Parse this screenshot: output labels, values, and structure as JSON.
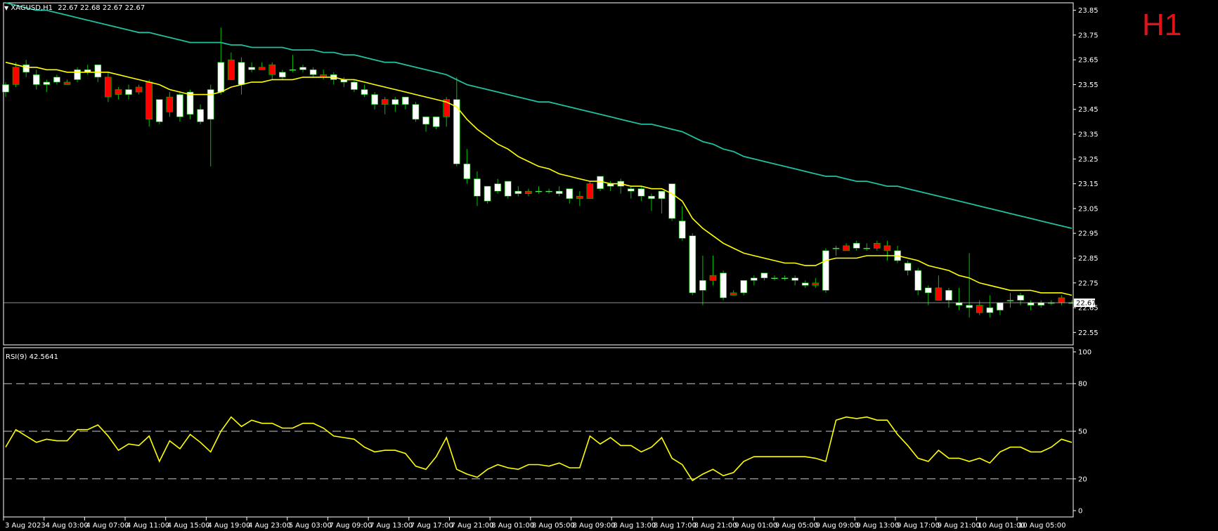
{
  "header": {
    "symbol": "XAGUSD,H1",
    "ohlc": "22.67 22.68 22.67 22.67"
  },
  "timeframe_badge": "H1",
  "indicator": {
    "label": "RSI(9) 42.5641"
  },
  "colors": {
    "background": "#000000",
    "bull_body": "#ffffff",
    "bear_body": "#ff0000",
    "wick": "#00c000",
    "ma_fast": "#ffff00",
    "ma_slow": "#20c0a0",
    "rsi": "#ffff00",
    "price_line": "#c0c0c0",
    "badge": "#e3111a"
  },
  "chart_data": [
    {
      "type": "candlestick",
      "symbol": "XAGUSD",
      "timeframe": "H1",
      "ylim": [
        22.5,
        23.88
      ],
      "yticks": [
        "23.85",
        "23.75",
        "23.65",
        "23.55",
        "23.45",
        "23.35",
        "23.25",
        "23.15",
        "23.05",
        "22.95",
        "22.85",
        "22.75",
        "22.65",
        "22.55"
      ],
      "last_price": "22.67",
      "xticks": [
        "3 Aug 2023",
        "4 Aug 03:00",
        "4 Aug 07:00",
        "4 Aug 11:00",
        "4 Aug 15:00",
        "4 Aug 19:00",
        "4 Aug 23:00",
        "5 Aug 03:00",
        "7 Aug 09:00",
        "7 Aug 13:00",
        "7 Aug 17:00",
        "7 Aug 21:00",
        "8 Aug 01:00",
        "8 Aug 05:00",
        "8 Aug 09:00",
        "8 Aug 13:00",
        "8 Aug 17:00",
        "8 Aug 21:00",
        "9 Aug 01:00",
        "9 Aug 05:00",
        "9 Aug 09:00",
        "9 Aug 13:00",
        "9 Aug 17:00",
        "9 Aug 21:00",
        "10 Aug 01:00",
        "10 Aug 05:00"
      ],
      "candles": [
        [
          23.52,
          23.56,
          23.5,
          23.55
        ],
        [
          23.62,
          23.64,
          23.54,
          23.55
        ],
        [
          23.6,
          23.65,
          23.58,
          23.63
        ],
        [
          23.55,
          23.61,
          23.53,
          23.59
        ],
        [
          23.55,
          23.57,
          23.52,
          23.56
        ],
        [
          23.56,
          23.59,
          23.55,
          23.58
        ],
        [
          23.56,
          23.57,
          23.55,
          23.55
        ],
        [
          23.57,
          23.62,
          23.56,
          23.61
        ],
        [
          23.6,
          23.63,
          23.59,
          23.61
        ],
        [
          23.58,
          23.63,
          23.56,
          23.63
        ],
        [
          23.58,
          23.6,
          23.48,
          23.5
        ],
        [
          23.53,
          23.54,
          23.49,
          23.51
        ],
        [
          23.51,
          23.55,
          23.49,
          23.53
        ],
        [
          23.54,
          23.55,
          23.51,
          23.52
        ],
        [
          23.56,
          23.57,
          23.38,
          23.41
        ],
        [
          23.4,
          23.49,
          23.39,
          23.49
        ],
        [
          23.5,
          23.52,
          23.42,
          23.44
        ],
        [
          23.42,
          23.52,
          23.4,
          23.51
        ],
        [
          23.43,
          23.53,
          23.41,
          23.52
        ],
        [
          23.4,
          23.47,
          23.39,
          23.45
        ],
        [
          23.41,
          23.55,
          23.22,
          23.53
        ],
        [
          23.52,
          23.78,
          23.51,
          23.64
        ],
        [
          23.65,
          23.68,
          23.57,
          23.57
        ],
        [
          23.55,
          23.66,
          23.51,
          23.64
        ],
        [
          23.61,
          23.64,
          23.6,
          23.62
        ],
        [
          23.62,
          23.64,
          23.61,
          23.61
        ],
        [
          23.63,
          23.64,
          23.57,
          23.59
        ],
        [
          23.58,
          23.61,
          23.57,
          23.6
        ],
        [
          23.61,
          23.67,
          23.6,
          23.61
        ],
        [
          23.61,
          23.63,
          23.6,
          23.62
        ],
        [
          23.59,
          23.62,
          23.58,
          23.61
        ],
        [
          23.59,
          23.61,
          23.57,
          23.58
        ],
        [
          23.57,
          23.6,
          23.55,
          23.59
        ],
        [
          23.56,
          23.58,
          23.54,
          23.57
        ],
        [
          23.53,
          23.57,
          23.52,
          23.56
        ],
        [
          23.51,
          23.55,
          23.5,
          23.53
        ],
        [
          23.47,
          23.52,
          23.45,
          23.51
        ],
        [
          23.49,
          23.5,
          23.43,
          23.47
        ],
        [
          23.47,
          23.5,
          23.44,
          23.49
        ],
        [
          23.47,
          23.5,
          23.45,
          23.5
        ],
        [
          23.41,
          23.48,
          23.4,
          23.47
        ],
        [
          23.39,
          23.42,
          23.36,
          23.42
        ],
        [
          23.38,
          23.42,
          23.37,
          23.42
        ],
        [
          23.49,
          23.5,
          23.38,
          23.42
        ],
        [
          23.23,
          23.58,
          23.22,
          23.49
        ],
        [
          23.17,
          23.29,
          23.15,
          23.23
        ],
        [
          23.1,
          23.2,
          23.06,
          23.17
        ],
        [
          23.08,
          23.14,
          23.07,
          23.14
        ],
        [
          23.12,
          23.17,
          23.11,
          23.15
        ],
        [
          23.1,
          23.16,
          23.09,
          23.16
        ],
        [
          23.11,
          23.14,
          23.1,
          23.12
        ],
        [
          23.12,
          23.13,
          23.1,
          23.11
        ],
        [
          23.12,
          23.14,
          23.11,
          23.12
        ],
        [
          23.12,
          23.13,
          23.11,
          23.12
        ],
        [
          23.11,
          23.14,
          23.1,
          23.12
        ],
        [
          23.09,
          23.13,
          23.07,
          23.13
        ],
        [
          23.1,
          23.12,
          23.06,
          23.09
        ],
        [
          23.15,
          23.16,
          23.09,
          23.09
        ],
        [
          23.13,
          23.18,
          23.12,
          23.18
        ],
        [
          23.14,
          23.16,
          23.12,
          23.15
        ],
        [
          23.14,
          23.17,
          23.11,
          23.16
        ],
        [
          23.12,
          23.14,
          23.09,
          23.13
        ],
        [
          23.1,
          23.14,
          23.08,
          23.13
        ],
        [
          23.09,
          23.11,
          23.04,
          23.1
        ],
        [
          23.09,
          23.11,
          23.03,
          23.12
        ],
        [
          23.01,
          23.15,
          23.0,
          23.15
        ],
        [
          22.93,
          23.06,
          22.92,
          23.0
        ],
        [
          22.71,
          22.95,
          22.7,
          22.94
        ],
        [
          22.72,
          22.86,
          22.66,
          22.76
        ],
        [
          22.78,
          22.86,
          22.74,
          22.76
        ],
        [
          22.69,
          22.8,
          22.68,
          22.79
        ],
        [
          22.71,
          22.72,
          22.7,
          22.7
        ],
        [
          22.71,
          22.76,
          22.7,
          22.76
        ],
        [
          22.76,
          22.78,
          22.74,
          22.77
        ],
        [
          22.77,
          22.79,
          22.76,
          22.79
        ],
        [
          22.77,
          22.78,
          22.76,
          22.77
        ],
        [
          22.77,
          22.78,
          22.76,
          22.77
        ],
        [
          22.76,
          22.78,
          22.74,
          22.77
        ],
        [
          22.74,
          22.76,
          22.73,
          22.75
        ],
        [
          22.75,
          22.77,
          22.73,
          22.74
        ],
        [
          22.72,
          22.89,
          22.71,
          22.88
        ],
        [
          22.89,
          22.9,
          22.86,
          22.89
        ],
        [
          22.9,
          22.91,
          22.88,
          22.88
        ],
        [
          22.89,
          22.92,
          22.88,
          22.91
        ],
        [
          22.89,
          22.91,
          22.88,
          22.89
        ],
        [
          22.91,
          22.92,
          22.88,
          22.89
        ],
        [
          22.9,
          22.92,
          22.84,
          22.88
        ],
        [
          22.84,
          22.9,
          22.83,
          22.88
        ],
        [
          22.8,
          22.84,
          22.78,
          22.83
        ],
        [
          22.72,
          22.81,
          22.7,
          22.8
        ],
        [
          22.71,
          22.74,
          22.66,
          22.73
        ],
        [
          22.73,
          22.78,
          22.68,
          22.68
        ],
        [
          22.68,
          22.73,
          22.65,
          22.72
        ],
        [
          22.66,
          22.73,
          22.64,
          22.67
        ],
        [
          22.65,
          22.87,
          22.61,
          22.66
        ],
        [
          22.66,
          22.68,
          22.62,
          22.63
        ],
        [
          22.63,
          22.7,
          22.61,
          22.65
        ],
        [
          22.64,
          22.67,
          22.62,
          22.67
        ],
        [
          22.68,
          22.71,
          22.65,
          22.68
        ],
        [
          22.68,
          22.71,
          22.66,
          22.7
        ],
        [
          22.66,
          22.68,
          22.64,
          22.67
        ],
        [
          22.66,
          22.68,
          22.65,
          22.67
        ],
        [
          22.67,
          22.68,
          22.66,
          22.67
        ],
        [
          22.69,
          22.7,
          22.66,
          22.67
        ],
        [
          22.67,
          22.68,
          22.67,
          22.67
        ]
      ],
      "ma_fast": [
        23.64,
        23.63,
        23.62,
        23.62,
        23.61,
        23.61,
        23.6,
        23.6,
        23.6,
        23.6,
        23.6,
        23.59,
        23.58,
        23.57,
        23.56,
        23.55,
        23.53,
        23.52,
        23.51,
        23.51,
        23.51,
        23.52,
        23.54,
        23.55,
        23.56,
        23.56,
        23.57,
        23.57,
        23.57,
        23.58,
        23.58,
        23.58,
        23.58,
        23.57,
        23.57,
        23.56,
        23.55,
        23.54,
        23.53,
        23.52,
        23.51,
        23.5,
        23.49,
        23.48,
        23.46,
        23.41,
        23.37,
        23.34,
        23.31,
        23.29,
        23.26,
        23.24,
        23.22,
        23.21,
        23.19,
        23.18,
        23.17,
        23.16,
        23.16,
        23.15,
        23.15,
        23.14,
        23.14,
        23.13,
        23.13,
        23.11,
        23.08,
        23.01,
        22.97,
        22.94,
        22.91,
        22.89,
        22.87,
        22.86,
        22.85,
        22.84,
        22.83,
        22.83,
        22.82,
        22.82,
        22.84,
        22.85,
        22.85,
        22.85,
        22.86,
        22.86,
        22.86,
        22.86,
        22.85,
        22.84,
        22.82,
        22.81,
        22.8,
        22.78,
        22.77,
        22.75,
        22.74,
        22.73,
        22.72,
        22.72,
        22.72,
        22.71,
        22.71,
        22.71,
        22.7
      ],
      "ma_slow": [
        23.88,
        23.87,
        23.86,
        23.85,
        23.85,
        23.84,
        23.83,
        23.82,
        23.81,
        23.8,
        23.79,
        23.78,
        23.77,
        23.76,
        23.76,
        23.75,
        23.74,
        23.73,
        23.72,
        23.72,
        23.72,
        23.72,
        23.71,
        23.71,
        23.7,
        23.7,
        23.7,
        23.7,
        23.69,
        23.69,
        23.69,
        23.68,
        23.68,
        23.67,
        23.67,
        23.66,
        23.65,
        23.64,
        23.64,
        23.63,
        23.62,
        23.61,
        23.6,
        23.59,
        23.57,
        23.55,
        23.54,
        23.53,
        23.52,
        23.51,
        23.5,
        23.49,
        23.48,
        23.48,
        23.47,
        23.46,
        23.45,
        23.44,
        23.43,
        23.42,
        23.41,
        23.4,
        23.39,
        23.39,
        23.38,
        23.37,
        23.36,
        23.34,
        23.32,
        23.31,
        23.29,
        23.28,
        23.26,
        23.25,
        23.24,
        23.23,
        23.22,
        23.21,
        23.2,
        23.19,
        23.18,
        23.18,
        23.17,
        23.16,
        23.16,
        23.15,
        23.14,
        23.14,
        23.13,
        23.12,
        23.11,
        23.1,
        23.09,
        23.08,
        23.07,
        23.06,
        23.05,
        23.04,
        23.03,
        23.02,
        23.01,
        23.0,
        22.99,
        22.98,
        22.97
      ]
    },
    {
      "type": "line",
      "indicator": "RSI(9)",
      "ylim": [
        0,
        100
      ],
      "yticks": [
        "100",
        "80",
        "50",
        "20",
        "0"
      ],
      "levels": [
        80,
        50,
        20
      ],
      "values": [
        40,
        51,
        47,
        43,
        45,
        44,
        44,
        51,
        51,
        54,
        47,
        38,
        42,
        41,
        47,
        31,
        44,
        39,
        48,
        43,
        37,
        50,
        59,
        53,
        57,
        55,
        55,
        52,
        52,
        55,
        55,
        52,
        47,
        46,
        45,
        40,
        37,
        38,
        38,
        36,
        28,
        26,
        34,
        46,
        26,
        23,
        21,
        26,
        29,
        27,
        26,
        29,
        29,
        28,
        30,
        27,
        27,
        47,
        42,
        46,
        41,
        41,
        37,
        40,
        46,
        33,
        29,
        19,
        23,
        26,
        22,
        24,
        31,
        34,
        34,
        34,
        34,
        34,
        34,
        33,
        31,
        57,
        59,
        58,
        59,
        57,
        57,
        48,
        41,
        33,
        31,
        38,
        33,
        33,
        31,
        33,
        30,
        37,
        40,
        40,
        37,
        37,
        40,
        45,
        43
      ]
    }
  ]
}
